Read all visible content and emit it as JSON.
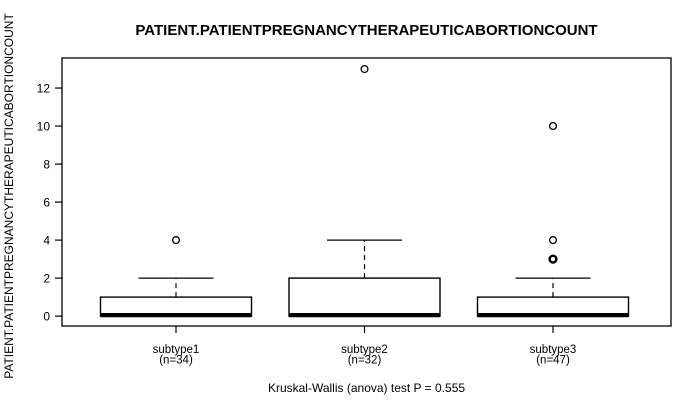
{
  "figure": {
    "title": "PATIENT.PATIENTPREGNANCYTHERAPEUTICABORTIONCOUNT",
    "y_axis_label": "PATIENT.PATIENTPREGNANCYTHERAPEUTICABORTIONCOUNT",
    "caption": "Kruskal-Wallis (anova) test P = 0.555"
  },
  "chart_data": {
    "type": "boxplot",
    "title": "PATIENT.PATIENTPREGNANCYTHERAPEUTICABORTIONCOUNT",
    "ylabel": "PATIENT.PATIENTPREGNANCYTHERAPEUTICABORTIONCOUNT",
    "xlabel": "",
    "caption": "Kruskal-Wallis (anova) test P = 0.555",
    "stat_test": {
      "name": "Kruskal-Wallis (anova)",
      "p_label": "P = 0.555"
    },
    "ylim": [
      -0.52,
      13.58
    ],
    "yticks": [
      0,
      2,
      4,
      6,
      8,
      10,
      12
    ],
    "grid": false,
    "groups": [
      {
        "label": "subtype1",
        "sublabel": "(n=34)",
        "n": 34,
        "q1": 0,
        "median": 0,
        "q3": 1,
        "whisker_low": 0,
        "whisker_high": 2,
        "outliers": [
          4
        ],
        "bold_outliers": []
      },
      {
        "label": "subtype2",
        "sublabel": "(n=32)",
        "n": 32,
        "q1": 0,
        "median": 0,
        "q3": 2,
        "whisker_low": 0,
        "whisker_high": 4,
        "outliers": [
          13
        ],
        "bold_outliers": []
      },
      {
        "label": "subtype3",
        "sublabel": "(n=47)",
        "n": 47,
        "q1": 0,
        "median": 0,
        "q3": 1,
        "whisker_low": 0,
        "whisker_high": 2,
        "outliers": [
          10,
          4
        ],
        "bold_outliers": [
          3
        ]
      }
    ],
    "colors": {
      "stroke": "#000000",
      "box_fill": "#ffffff",
      "background": "#ffffff"
    }
  }
}
